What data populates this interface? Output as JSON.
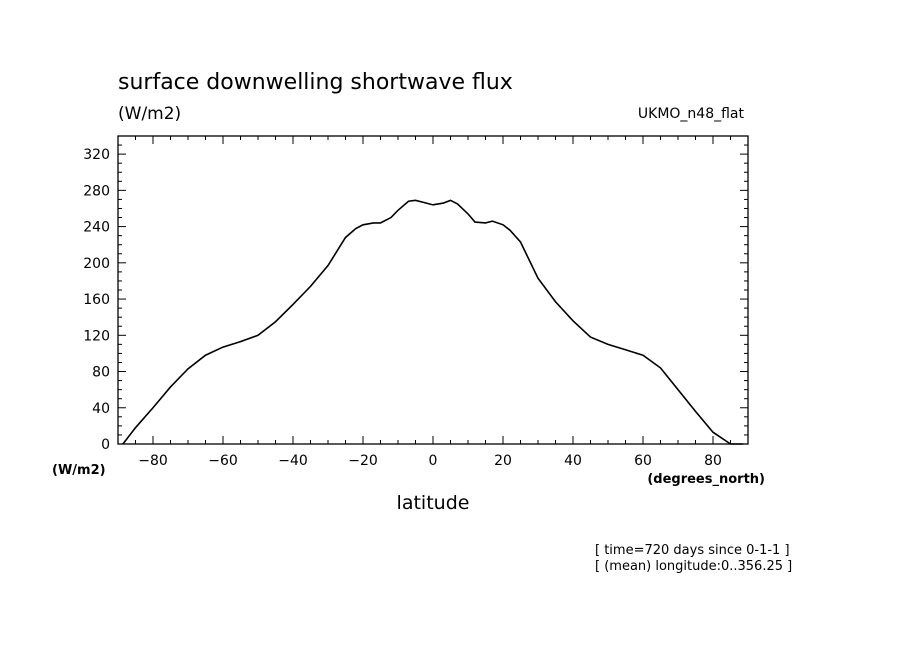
{
  "chart_data": {
    "type": "line",
    "title": "surface downwelling shortwave flux",
    "units_label": "(W/m2)",
    "model_label": "UKMO_n48_flat",
    "xlabel": "latitude",
    "x_units": "(degrees_north)",
    "y_units": "(W/m2)",
    "xlim": [
      -90,
      90
    ],
    "ylim": [
      0,
      340
    ],
    "x_ticks": [
      -80,
      -60,
      -40,
      -20,
      0,
      20,
      40,
      60,
      80
    ],
    "y_ticks": [
      0,
      40,
      80,
      120,
      160,
      200,
      240,
      280,
      320
    ],
    "grid": false,
    "annotations": [
      "[ time=720 days since 0-1-1 ]",
      "[ (mean) longitude:0..356.25 ]"
    ],
    "series": [
      {
        "x": [
          -88.6,
          -85,
          -80,
          -75,
          -70,
          -65,
          -60,
          -55,
          -50,
          -45,
          -40,
          -35,
          -30,
          -25,
          -22,
          -20,
          -17,
          -15,
          -12,
          -10,
          -7,
          -5,
          -3,
          0,
          3,
          5,
          7,
          10,
          12,
          15,
          17,
          20,
          22,
          25,
          30,
          35,
          40,
          45,
          50,
          55,
          60,
          65,
          70,
          75,
          80,
          85,
          88.6
        ],
        "y": [
          0,
          18,
          40,
          63,
          83,
          98,
          107,
          113,
          120,
          135,
          154,
          174,
          197,
          228,
          238,
          242,
          244,
          244,
          250,
          258,
          268,
          269,
          267,
          264,
          266,
          269,
          265,
          254,
          245,
          244,
          246,
          242,
          236,
          223,
          183,
          157,
          136,
          118,
          110,
          104,
          98,
          84,
          60,
          36,
          13,
          0,
          0
        ]
      }
    ]
  }
}
